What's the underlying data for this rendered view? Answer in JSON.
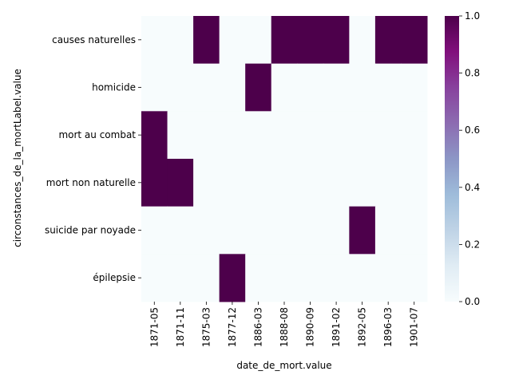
{
  "chart_data": {
    "type": "heatmap",
    "title": "",
    "xlabel": "date_de_mort.value",
    "ylabel": "circonstances_de_la_mortLabel.value",
    "x": [
      "1871-05",
      "1871-11",
      "1875-03",
      "1877-12",
      "1886-03",
      "1888-08",
      "1890-09",
      "1891-02",
      "1892-05",
      "1896-03",
      "1901-07"
    ],
    "y": [
      "causes naturelles",
      "homicide",
      "mort au combat",
      "mort non naturelle",
      "suicide par noyade",
      "épilepsie"
    ],
    "values": [
      [
        0,
        0,
        1,
        0,
        0,
        1,
        1,
        1,
        0,
        1,
        1
      ],
      [
        0,
        0,
        0,
        0,
        1,
        0,
        0,
        0,
        0,
        0,
        0
      ],
      [
        1,
        0,
        0,
        0,
        0,
        0,
        0,
        0,
        0,
        0,
        0
      ],
      [
        1,
        1,
        0,
        0,
        0,
        0,
        0,
        0,
        0,
        0,
        0
      ],
      [
        0,
        0,
        0,
        0,
        0,
        0,
        0,
        0,
        1,
        0,
        0
      ],
      [
        0,
        0,
        0,
        1,
        0,
        0,
        0,
        0,
        0,
        0,
        0
      ]
    ],
    "colorbar": {
      "range": [
        0.0,
        1.0
      ],
      "ticks": [
        "0.0",
        "0.2",
        "0.4",
        "0.6",
        "0.8",
        "1.0"
      ],
      "colormap": "BuPu",
      "low_color": "#f7fcfd",
      "high_color": "#4d004b"
    }
  }
}
